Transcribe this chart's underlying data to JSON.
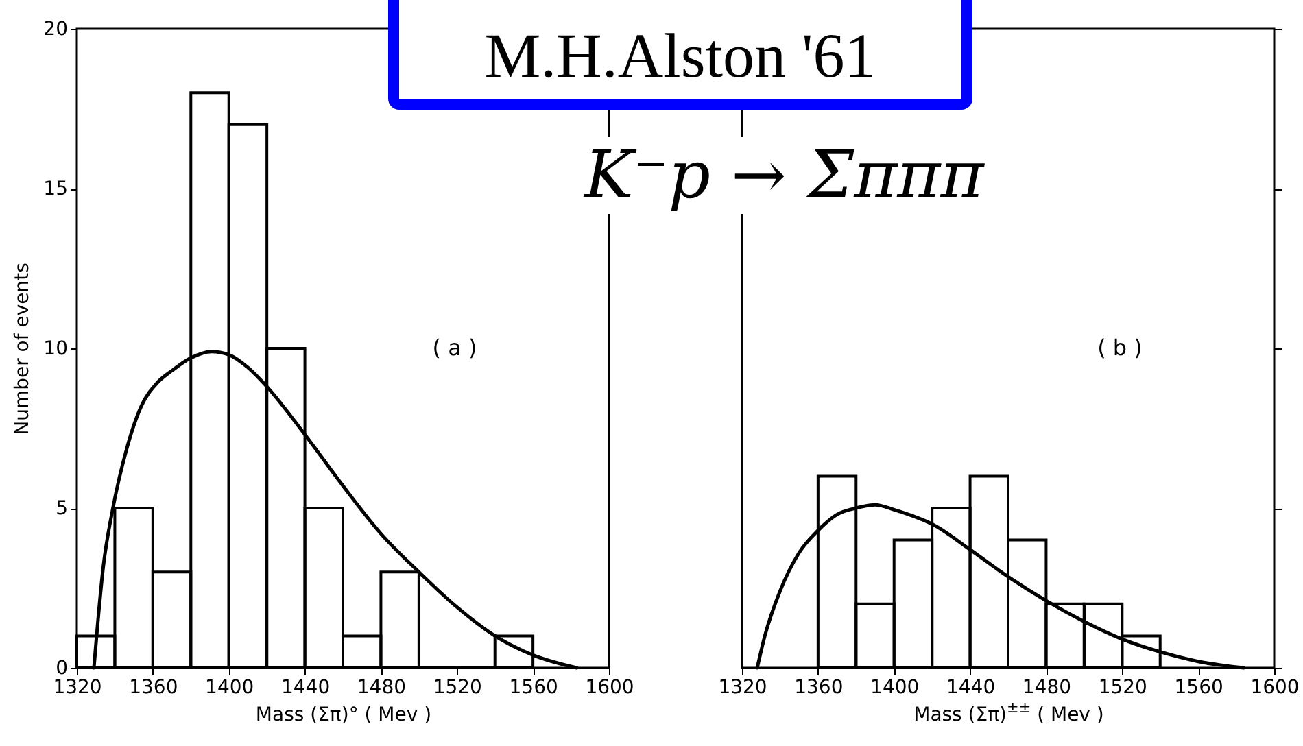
{
  "chart_data": [
    {
      "type": "histogram",
      "title": "M.H.Alston '61",
      "xlabel": "Mass (Σπ)° ( Mev )",
      "ylabel": "Number of events",
      "annotations": [
        "( a )"
      ],
      "bins": [
        1320,
        1340,
        1360,
        1380,
        1400,
        1420,
        1440,
        1460,
        1480,
        1500,
        1520,
        1540,
        1560
      ],
      "values": [
        1,
        5,
        3,
        18,
        17,
        10,
        5,
        1,
        3,
        0,
        0,
        1
      ],
      "color": "#000000",
      "xlim": [
        1320,
        1600
      ],
      "xticks": [
        1320,
        1360,
        1400,
        1440,
        1480,
        1520,
        1560,
        1600
      ],
      "ylim": [
        0,
        20
      ],
      "yticks": [
        0,
        5,
        10,
        15,
        20
      ],
      "series": [
        {
          "type": "line",
          "color": "#000000",
          "x": [
            1329,
            1334,
            1339,
            1346,
            1354,
            1362,
            1370,
            1380,
            1391,
            1400,
            1410,
            1420,
            1440,
            1460,
            1480,
            1500,
            1520,
            1540,
            1560,
            1583
          ],
          "values": [
            0,
            3.2,
            5.0,
            6.8,
            8.2,
            8.9,
            9.3,
            9.7,
            9.9,
            9.8,
            9.4,
            8.8,
            7.3,
            5.7,
            4.2,
            3.0,
            1.9,
            1.0,
            0.4,
            0
          ]
        }
      ]
    },
    {
      "type": "histogram",
      "subtitle": "K⁻p → Σπππ",
      "xlabel": "Mass (Σπ)$^{±±}$ ( Mev )",
      "annotations": [
        "( b )"
      ],
      "bins": [
        1360,
        1380,
        1400,
        1420,
        1440,
        1460,
        1480,
        1500,
        1520,
        1540
      ],
      "values": [
        6,
        2,
        4,
        5,
        6,
        4,
        2,
        2,
        1
      ],
      "color": "#000000",
      "xlim": [
        1320,
        1600
      ],
      "xticks": [
        1320,
        1360,
        1400,
        1440,
        1480,
        1520,
        1560,
        1600
      ],
      "ylim": [
        0,
        20
      ],
      "yticks": [
        0,
        5,
        10,
        15,
        20
      ],
      "tick_labels": "x",
      "series": [
        {
          "type": "line",
          "color": "#000000",
          "x": [
            1328,
            1332,
            1340,
            1350,
            1360,
            1370,
            1380,
            1390,
            1400,
            1410,
            1420,
            1440,
            1460,
            1480,
            1500,
            1520,
            1540,
            1560,
            1584
          ],
          "values": [
            0,
            1.0,
            2.4,
            3.6,
            4.3,
            4.8,
            5.0,
            5.1,
            4.95,
            4.75,
            4.5,
            3.7,
            2.85,
            2.1,
            1.45,
            0.9,
            0.5,
            0.2,
            0
          ]
        }
      ]
    }
  ]
}
